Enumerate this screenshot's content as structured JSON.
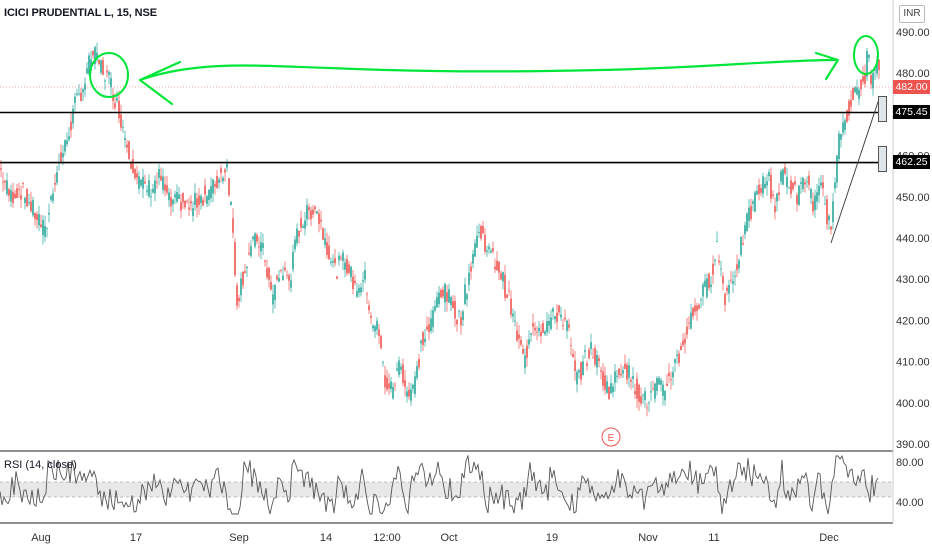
{
  "header": {
    "symbol": "ICICI PRUDENTIAL L, 15, NSE",
    "currency": "INR"
  },
  "price_labels": {
    "last": "482.00",
    "level_upper": "475.45",
    "level_lower": "462.25"
  },
  "rsi_title": "RSI (14, close)",
  "earnings_marker": "E",
  "colors": {
    "up": "#26a69a",
    "down": "#ef5350",
    "annotation": "#00e639",
    "level_line": "#000000",
    "rsi_line": "#555555",
    "rsi_band": "#e8e8e8",
    "last_price_bg": "#ef5350"
  },
  "chart_data": [
    {
      "type": "candlestick",
      "ylim": [
        388,
        500
      ],
      "yticks": [
        390,
        400,
        410,
        420,
        430,
        440,
        450,
        460,
        470,
        480,
        490
      ],
      "x_tick_labels": [
        "Aug",
        "17",
        "Sep",
        "14",
        "12:00",
        "Oct",
        "19",
        "Nov",
        "11",
        "Dec"
      ],
      "horizontal_levels": [
        475.45,
        462.25
      ],
      "last_price": 482.0,
      "close_path": [
        {
          "i": 0,
          "v": 457
        },
        {
          "i": 10,
          "v": 450
        },
        {
          "i": 20,
          "v": 452
        },
        {
          "i": 30,
          "v": 448
        },
        {
          "i": 40,
          "v": 444
        },
        {
          "i": 45,
          "v": 441
        },
        {
          "i": 55,
          "v": 455
        },
        {
          "i": 65,
          "v": 462
        },
        {
          "i": 75,
          "v": 472
        },
        {
          "i": 85,
          "v": 478
        },
        {
          "i": 92,
          "v": 485
        },
        {
          "i": 100,
          "v": 482
        },
        {
          "i": 110,
          "v": 478
        },
        {
          "i": 120,
          "v": 470
        },
        {
          "i": 130,
          "v": 460
        },
        {
          "i": 140,
          "v": 453
        },
        {
          "i": 150,
          "v": 452
        },
        {
          "i": 160,
          "v": 455
        },
        {
          "i": 170,
          "v": 448
        },
        {
          "i": 180,
          "v": 449
        },
        {
          "i": 190,
          "v": 447
        },
        {
          "i": 200,
          "v": 450
        },
        {
          "i": 210,
          "v": 451
        },
        {
          "i": 220,
          "v": 455
        },
        {
          "i": 227,
          "v": 458
        },
        {
          "i": 232,
          "v": 445
        },
        {
          "i": 237,
          "v": 425
        },
        {
          "i": 242,
          "v": 430
        },
        {
          "i": 250,
          "v": 437
        },
        {
          "i": 258,
          "v": 440
        },
        {
          "i": 265,
          "v": 435
        },
        {
          "i": 272,
          "v": 425
        },
        {
          "i": 280,
          "v": 432
        },
        {
          "i": 290,
          "v": 430
        },
        {
          "i": 298,
          "v": 442
        },
        {
          "i": 305,
          "v": 445
        },
        {
          "i": 315,
          "v": 448
        },
        {
          "i": 325,
          "v": 440
        },
        {
          "i": 335,
          "v": 432
        },
        {
          "i": 345,
          "v": 435
        },
        {
          "i": 355,
          "v": 428
        },
        {
          "i": 365,
          "v": 430
        },
        {
          "i": 372,
          "v": 420
        },
        {
          "i": 378,
          "v": 418
        },
        {
          "i": 385,
          "v": 405
        },
        {
          "i": 392,
          "v": 403
        },
        {
          "i": 400,
          "v": 410
        },
        {
          "i": 408,
          "v": 402
        },
        {
          "i": 415,
          "v": 405
        },
        {
          "i": 422,
          "v": 415
        },
        {
          "i": 430,
          "v": 418
        },
        {
          "i": 440,
          "v": 428
        },
        {
          "i": 450,
          "v": 425
        },
        {
          "i": 460,
          "v": 420
        },
        {
          "i": 468,
          "v": 430
        },
        {
          "i": 476,
          "v": 440
        },
        {
          "i": 482,
          "v": 441
        },
        {
          "i": 490,
          "v": 436
        },
        {
          "i": 500,
          "v": 432
        },
        {
          "i": 510,
          "v": 424
        },
        {
          "i": 518,
          "v": 415
        },
        {
          "i": 525,
          "v": 410
        },
        {
          "i": 532,
          "v": 420
        },
        {
          "i": 540,
          "v": 418
        },
        {
          "i": 550,
          "v": 420
        },
        {
          "i": 560,
          "v": 422
        },
        {
          "i": 568,
          "v": 418
        },
        {
          "i": 576,
          "v": 405
        },
        {
          "i": 584,
          "v": 410
        },
        {
          "i": 592,
          "v": 413
        },
        {
          "i": 600,
          "v": 408
        },
        {
          "i": 608,
          "v": 403
        },
        {
          "i": 616,
          "v": 406
        },
        {
          "i": 624,
          "v": 410
        },
        {
          "i": 632,
          "v": 405
        },
        {
          "i": 640,
          "v": 402
        },
        {
          "i": 648,
          "v": 400
        },
        {
          "i": 656,
          "v": 404
        },
        {
          "i": 664,
          "v": 403
        },
        {
          "i": 672,
          "v": 408
        },
        {
          "i": 680,
          "v": 412
        },
        {
          "i": 690,
          "v": 420
        },
        {
          "i": 700,
          "v": 425
        },
        {
          "i": 710,
          "v": 430
        },
        {
          "i": 717,
          "v": 438
        },
        {
          "i": 725,
          "v": 426
        },
        {
          "i": 735,
          "v": 432
        },
        {
          "i": 745,
          "v": 442
        },
        {
          "i": 753,
          "v": 448
        },
        {
          "i": 760,
          "v": 452
        },
        {
          "i": 768,
          "v": 455
        },
        {
          "i": 775,
          "v": 448
        },
        {
          "i": 783,
          "v": 456
        },
        {
          "i": 790,
          "v": 453
        },
        {
          "i": 798,
          "v": 450
        },
        {
          "i": 806,
          "v": 455
        },
        {
          "i": 814,
          "v": 448
        },
        {
          "i": 822,
          "v": 452
        },
        {
          "i": 830,
          "v": 442
        },
        {
          "i": 836,
          "v": 455
        },
        {
          "i": 840,
          "v": 466
        },
        {
          "i": 846,
          "v": 470
        },
        {
          "i": 852,
          "v": 474
        },
        {
          "i": 858,
          "v": 475
        },
        {
          "i": 864,
          "v": 478
        },
        {
          "i": 868,
          "v": 485
        },
        {
          "i": 872,
          "v": 478
        },
        {
          "i": 878,
          "v": 482
        }
      ]
    },
    {
      "type": "line",
      "name": "RSI (14, close)",
      "ylim": [
        20,
        90
      ],
      "yticks": [
        40.0,
        80.0
      ],
      "band": [
        30,
        70
      ]
    }
  ]
}
